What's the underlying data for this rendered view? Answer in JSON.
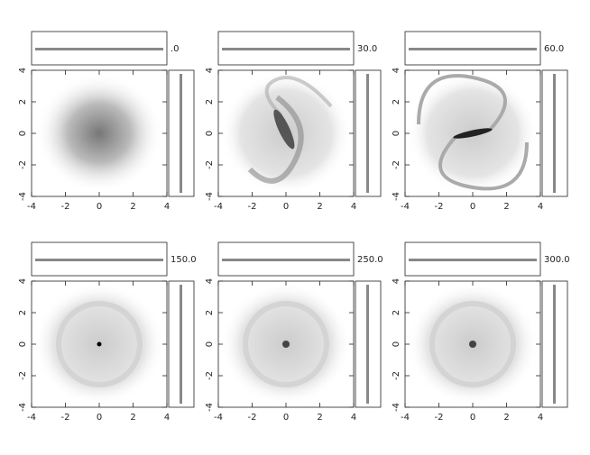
{
  "chart_data": [
    {
      "type": "scatter",
      "annotation": ".0",
      "xlim": [
        -4,
        4
      ],
      "ylim": [
        -4,
        4
      ],
      "xticks": [
        -4,
        -2,
        0,
        2,
        4
      ],
      "yticks": [
        -4,
        -2,
        0,
        2,
        4
      ]
    },
    {
      "type": "scatter",
      "annotation": "30.0",
      "xlim": [
        -4,
        4
      ],
      "ylim": [
        -4,
        4
      ],
      "xticks": [
        -4,
        -2,
        0,
        2,
        4
      ],
      "yticks": [
        -4,
        -2,
        0,
        2,
        4
      ]
    },
    {
      "type": "scatter",
      "annotation": "60.0",
      "xlim": [
        -4,
        4
      ],
      "ylim": [
        -4,
        4
      ],
      "xticks": [
        -4,
        -2,
        0,
        2,
        4
      ],
      "yticks": [
        -4,
        -2,
        0,
        2,
        4
      ]
    },
    {
      "type": "scatter",
      "annotation": "150.0",
      "xlim": [
        -4,
        4
      ],
      "ylim": [
        -4,
        4
      ],
      "xticks": [
        -4,
        -2,
        0,
        2,
        4
      ],
      "yticks": [
        -4,
        -2,
        0,
        2,
        4
      ]
    },
    {
      "type": "scatter",
      "annotation": "250.0",
      "xlim": [
        -4,
        4
      ],
      "ylim": [
        -4,
        4
      ],
      "xticks": [
        -4,
        -2,
        0,
        2,
        4
      ],
      "yticks": [
        -4,
        -2,
        0,
        2,
        4
      ]
    },
    {
      "type": "scatter",
      "annotation": "300.0",
      "xlim": [
        -4,
        4
      ],
      "ylim": [
        -4,
        4
      ],
      "xticks": [
        -4,
        -2,
        0,
        2,
        4
      ],
      "yticks": [
        -4,
        -2,
        0,
        2,
        4
      ]
    }
  ]
}
